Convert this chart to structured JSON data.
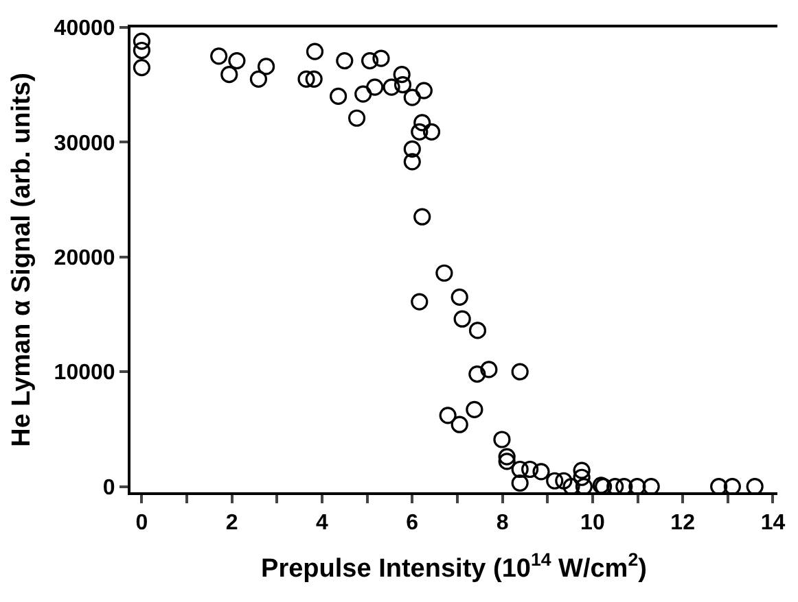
{
  "chart_data": {
    "type": "scatter",
    "xlabel": "Prepulse Intensity (10$^{14}$ W/cm$^{2}$)",
    "ylabel": "He Lyman α Signal (arb. units)",
    "marker": "circle",
    "grid": false,
    "xlim": [
      -0.25,
      14.1
    ],
    "ylim": [
      -500,
      40000
    ],
    "xticks": [
      0,
      {
        "value": 1,
        "label": null
      },
      2,
      {
        "value": 3,
        "label": null
      },
      4,
      {
        "value": 5,
        "label": null
      },
      6,
      {
        "value": 7,
        "label": null
      },
      8,
      {
        "value": 9,
        "label": null
      },
      10,
      {
        "value": 11,
        "label": null
      },
      12,
      {
        "value": 13,
        "label": null
      },
      14
    ],
    "yticks": [
      0,
      10000,
      20000,
      30000,
      40000
    ],
    "series": [
      {
        "color": "#000000",
        "x": [
          0,
          0,
          0,
          1.71,
          2.11,
          1.94,
          2.59,
          2.76,
          3.65,
          3.82,
          3.84,
          4.36,
          4.5,
          4.77,
          4.91,
          5.06,
          5.17,
          5.31,
          5.54,
          5.77,
          5.79,
          6.0,
          6.26,
          6.22,
          6.16,
          6.43,
          6.0,
          6.0,
          6.22,
          6.71,
          6.16,
          7.05,
          7.11,
          7.45,
          7.44,
          7.7,
          8.39,
          6.79,
          7.05,
          7.38,
          7.99,
          8.1,
          8.1,
          8.39,
          8.39,
          8.61,
          8.86,
          9.16,
          9.36,
          9.53,
          9.76,
          9.76,
          9.81,
          10.19,
          10.24,
          10.5,
          10.7,
          10.99,
          11.3,
          12.8,
          13.1,
          13.6
        ],
        "values": [
          38800,
          38000,
          36500,
          37500,
          37100,
          35900,
          35500,
          36600,
          35500,
          35500,
          37900,
          34000,
          37100,
          32100,
          34200,
          37100,
          34800,
          37300,
          34800,
          35900,
          35000,
          33900,
          34500,
          31700,
          30900,
          30900,
          29400,
          28300,
          23500,
          18600,
          16100,
          16500,
          14600,
          13600,
          9800,
          10200,
          10000,
          6200,
          5400,
          6700,
          4100,
          2600,
          2200,
          1500,
          300,
          1500,
          1300,
          500,
          500,
          0,
          1400,
          800,
          0,
          100,
          0,
          0,
          0,
          0,
          0,
          0,
          0,
          0
        ]
      }
    ]
  }
}
